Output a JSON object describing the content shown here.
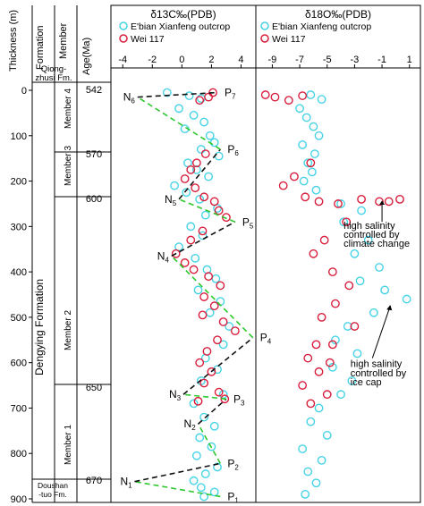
{
  "labels": {
    "thickness_header": "Thickness (m)",
    "formation_header": "Formation",
    "member_header": "Member",
    "age_header": "Age(Ma)",
    "formation_top": [
      "Qiong-",
      "zhusi Fm."
    ],
    "formation_bottom": [
      "Doushan",
      "-tuo Fm."
    ],
    "formation_main": "Dengying Formation",
    "members": [
      "Member 4",
      "Member 3",
      "Member 2",
      "Member 1"
    ],
    "ages": [
      "542",
      "570",
      "600",
      "650",
      "670"
    ]
  },
  "colors": {
    "outcrop": "#46d3e6",
    "well": "#d81e3c",
    "green_dash": "#2ec82e",
    "black_dash": "#111111"
  },
  "chart_data": [
    {
      "type": "scatter",
      "title": "δ13C‰(PDB)",
      "xlabel": "δ13C‰(PDB)",
      "ylabel": "Thickness (m)",
      "x_ticks": [
        -4,
        -2,
        0,
        2,
        4
      ],
      "xlim": [
        -4.8,
        5
      ],
      "ylim": [
        0,
        900
      ],
      "y_ticks": [
        0,
        100,
        200,
        300,
        400,
        500,
        600,
        700,
        800,
        900
      ],
      "legend": [
        "E'bian Xianfeng outcrop",
        "Wei 117"
      ],
      "series": [
        {
          "name": "E'bian Xianfeng outcrop",
          "points": [
            [
              -1.0,
              5
            ],
            [
              0.5,
              12
            ],
            [
              1.3,
              18
            ],
            [
              -0.2,
              40
            ],
            [
              0.8,
              55
            ],
            [
              1.5,
              70
            ],
            [
              0.2,
              85
            ],
            [
              1.9,
              100
            ],
            [
              2.2,
              115
            ],
            [
              1.3,
              130
            ],
            [
              2.5,
              145
            ],
            [
              0.4,
              160
            ],
            [
              1.0,
              175
            ],
            [
              1.8,
              190
            ],
            [
              -0.5,
              210
            ],
            [
              0.3,
              225
            ],
            [
              1.2,
              240
            ],
            [
              2.4,
              260
            ],
            [
              1.6,
              275
            ],
            [
              0.6,
              300
            ],
            [
              1.4,
              320
            ],
            [
              -0.2,
              345
            ],
            [
              0.9,
              370
            ],
            [
              1.7,
              395
            ],
            [
              2.3,
              415
            ],
            [
              1.1,
              440
            ],
            [
              2.6,
              465
            ],
            [
              1.9,
              490
            ],
            [
              3.2,
              520
            ],
            [
              2.8,
              560
            ],
            [
              1.6,
              590
            ],
            [
              2.4,
              615
            ],
            [
              1.3,
              640
            ],
            [
              2.8,
              670
            ],
            [
              0.8,
              690
            ],
            [
              1.5,
              720
            ],
            [
              2.2,
              740
            ],
            [
              1.2,
              765
            ],
            [
              2.0,
              785
            ],
            [
              1.0,
              805
            ],
            [
              2.4,
              830
            ],
            [
              1.6,
              845
            ],
            [
              0.8,
              860
            ],
            [
              1.3,
              875
            ],
            [
              2.2,
              885
            ],
            [
              1.5,
              895
            ]
          ]
        },
        {
          "name": "Wei 117",
          "points": [
            [
              2.1,
              5
            ],
            [
              1.8,
              15
            ],
            [
              1.2,
              22
            ],
            [
              1.6,
              140
            ],
            [
              1.0,
              160
            ],
            [
              0.6,
              175
            ],
            [
              0.2,
              195
            ],
            [
              0.9,
              215
            ],
            [
              1.5,
              235
            ],
            [
              2.2,
              245
            ],
            [
              3.0,
              280
            ],
            [
              2.5,
              265
            ],
            [
              1.4,
              310
            ],
            [
              0.6,
              330
            ],
            [
              -0.4,
              360
            ],
            [
              0.2,
              380
            ],
            [
              0.8,
              395
            ],
            [
              1.8,
              410
            ],
            [
              2.6,
              430
            ],
            [
              1.5,
              455
            ],
            [
              2.2,
              475
            ],
            [
              1.4,
              495
            ],
            [
              2.8,
              510
            ],
            [
              3.6,
              530
            ],
            [
              2.4,
              550
            ],
            [
              1.7,
              575
            ],
            [
              1.2,
              600
            ],
            [
              2.0,
              620
            ],
            [
              1.5,
              645
            ],
            [
              2.5,
              665
            ],
            [
              1.1,
              685
            ],
            [
              2.9,
              680
            ]
          ]
        }
      ],
      "annotations": [
        {
          "label": "P7",
          "x": 2.4,
          "y": 5
        },
        {
          "label": "N6",
          "x": -3.0,
          "y": 15
        },
        {
          "label": "P6",
          "x": 2.6,
          "y": 130
        },
        {
          "label": "N5",
          "x": -0.2,
          "y": 240
        },
        {
          "label": "P5",
          "x": 3.6,
          "y": 290
        },
        {
          "label": "N4",
          "x": -0.7,
          "y": 365
        },
        {
          "label": "P4",
          "x": 4.8,
          "y": 545
        },
        {
          "label": "N3",
          "x": 0.1,
          "y": 670
        },
        {
          "label": "P3",
          "x": 3.0,
          "y": 680
        },
        {
          "label": "N2",
          "x": 1.1,
          "y": 735
        },
        {
          "label": "P2",
          "x": 2.6,
          "y": 822
        },
        {
          "label": "N1",
          "x": -3.2,
          "y": 862
        },
        {
          "label": "P1",
          "x": 2.6,
          "y": 895
        }
      ]
    },
    {
      "type": "scatter",
      "title": "δ18O‰(PDB)",
      "xlabel": "δ18O‰(PDB)",
      "ylabel": "Thickness (m)",
      "x_ticks": [
        -9,
        -7,
        -5,
        -3,
        -1,
        1
      ],
      "xlim": [
        -10.2,
        1.8
      ],
      "ylim": [
        0,
        900
      ],
      "legend": [
        "E'bian Xianfeng outcrop",
        "Wei 117"
      ],
      "series": [
        {
          "name": "E'bian Xianfeng outcrop",
          "points": [
            [
              -6.2,
              10
            ],
            [
              -5.4,
              20
            ],
            [
              -7.0,
              40
            ],
            [
              -6.5,
              60
            ],
            [
              -6.0,
              80
            ],
            [
              -5.6,
              100
            ],
            [
              -6.8,
              120
            ],
            [
              -5.9,
              140
            ],
            [
              -6.4,
              160
            ],
            [
              -6.1,
              180
            ],
            [
              -6.7,
              200
            ],
            [
              -5.8,
              220
            ],
            [
              -4.0,
              250
            ],
            [
              -2.5,
              265
            ],
            [
              -3.8,
              290
            ],
            [
              -2.0,
              330
            ],
            [
              -3.0,
              360
            ],
            [
              -1.2,
              390
            ],
            [
              -2.6,
              420
            ],
            [
              -0.8,
              440
            ],
            [
              0.8,
              460
            ],
            [
              -1.6,
              490
            ],
            [
              -3.5,
              520
            ],
            [
              -4.4,
              550
            ],
            [
              -2.8,
              580
            ],
            [
              -4.6,
              610
            ],
            [
              -3.2,
              640
            ],
            [
              -4.0,
              670
            ],
            [
              -5.6,
              700
            ],
            [
              -6.2,
              730
            ],
            [
              -5.0,
              760
            ],
            [
              -6.8,
              790
            ],
            [
              -5.4,
              815
            ],
            [
              -6.4,
              840
            ],
            [
              -5.8,
              865
            ],
            [
              -6.6,
              890
            ]
          ]
        },
        {
          "name": "Wei 117",
          "points": [
            [
              -9.5,
              10
            ],
            [
              -8.8,
              15
            ],
            [
              -7.8,
              22
            ],
            [
              -6.8,
              12
            ],
            [
              -6.2,
              160
            ],
            [
              -7.4,
              190
            ],
            [
              -8.2,
              210
            ],
            [
              -6.6,
              235
            ],
            [
              -5.6,
              245
            ],
            [
              -4.2,
              250
            ],
            [
              -2.5,
              240
            ],
            [
              -1.2,
              245
            ],
            [
              -0.5,
              245
            ],
            [
              0.3,
              240
            ],
            [
              -3.6,
              290
            ],
            [
              -5.2,
              330
            ],
            [
              -6.0,
              360
            ],
            [
              -4.6,
              400
            ],
            [
              -3.4,
              430
            ],
            [
              -4.4,
              470
            ],
            [
              -5.4,
              500
            ],
            [
              -3.0,
              520
            ],
            [
              -4.6,
              560
            ],
            [
              -6.4,
              590
            ],
            [
              -5.6,
              620
            ],
            [
              -6.8,
              650
            ],
            [
              -5.0,
              670
            ],
            [
              -6.2,
              690
            ],
            [
              -5.8,
              560
            ],
            [
              -4.8,
              600
            ]
          ]
        }
      ],
      "annotations": [
        {
          "label": "high salinity controlled by climate change",
          "x": -3.5,
          "y": 320
        },
        {
          "label": "high salinity controlled by ice cap",
          "x": -3.0,
          "y": 620
        }
      ]
    }
  ]
}
